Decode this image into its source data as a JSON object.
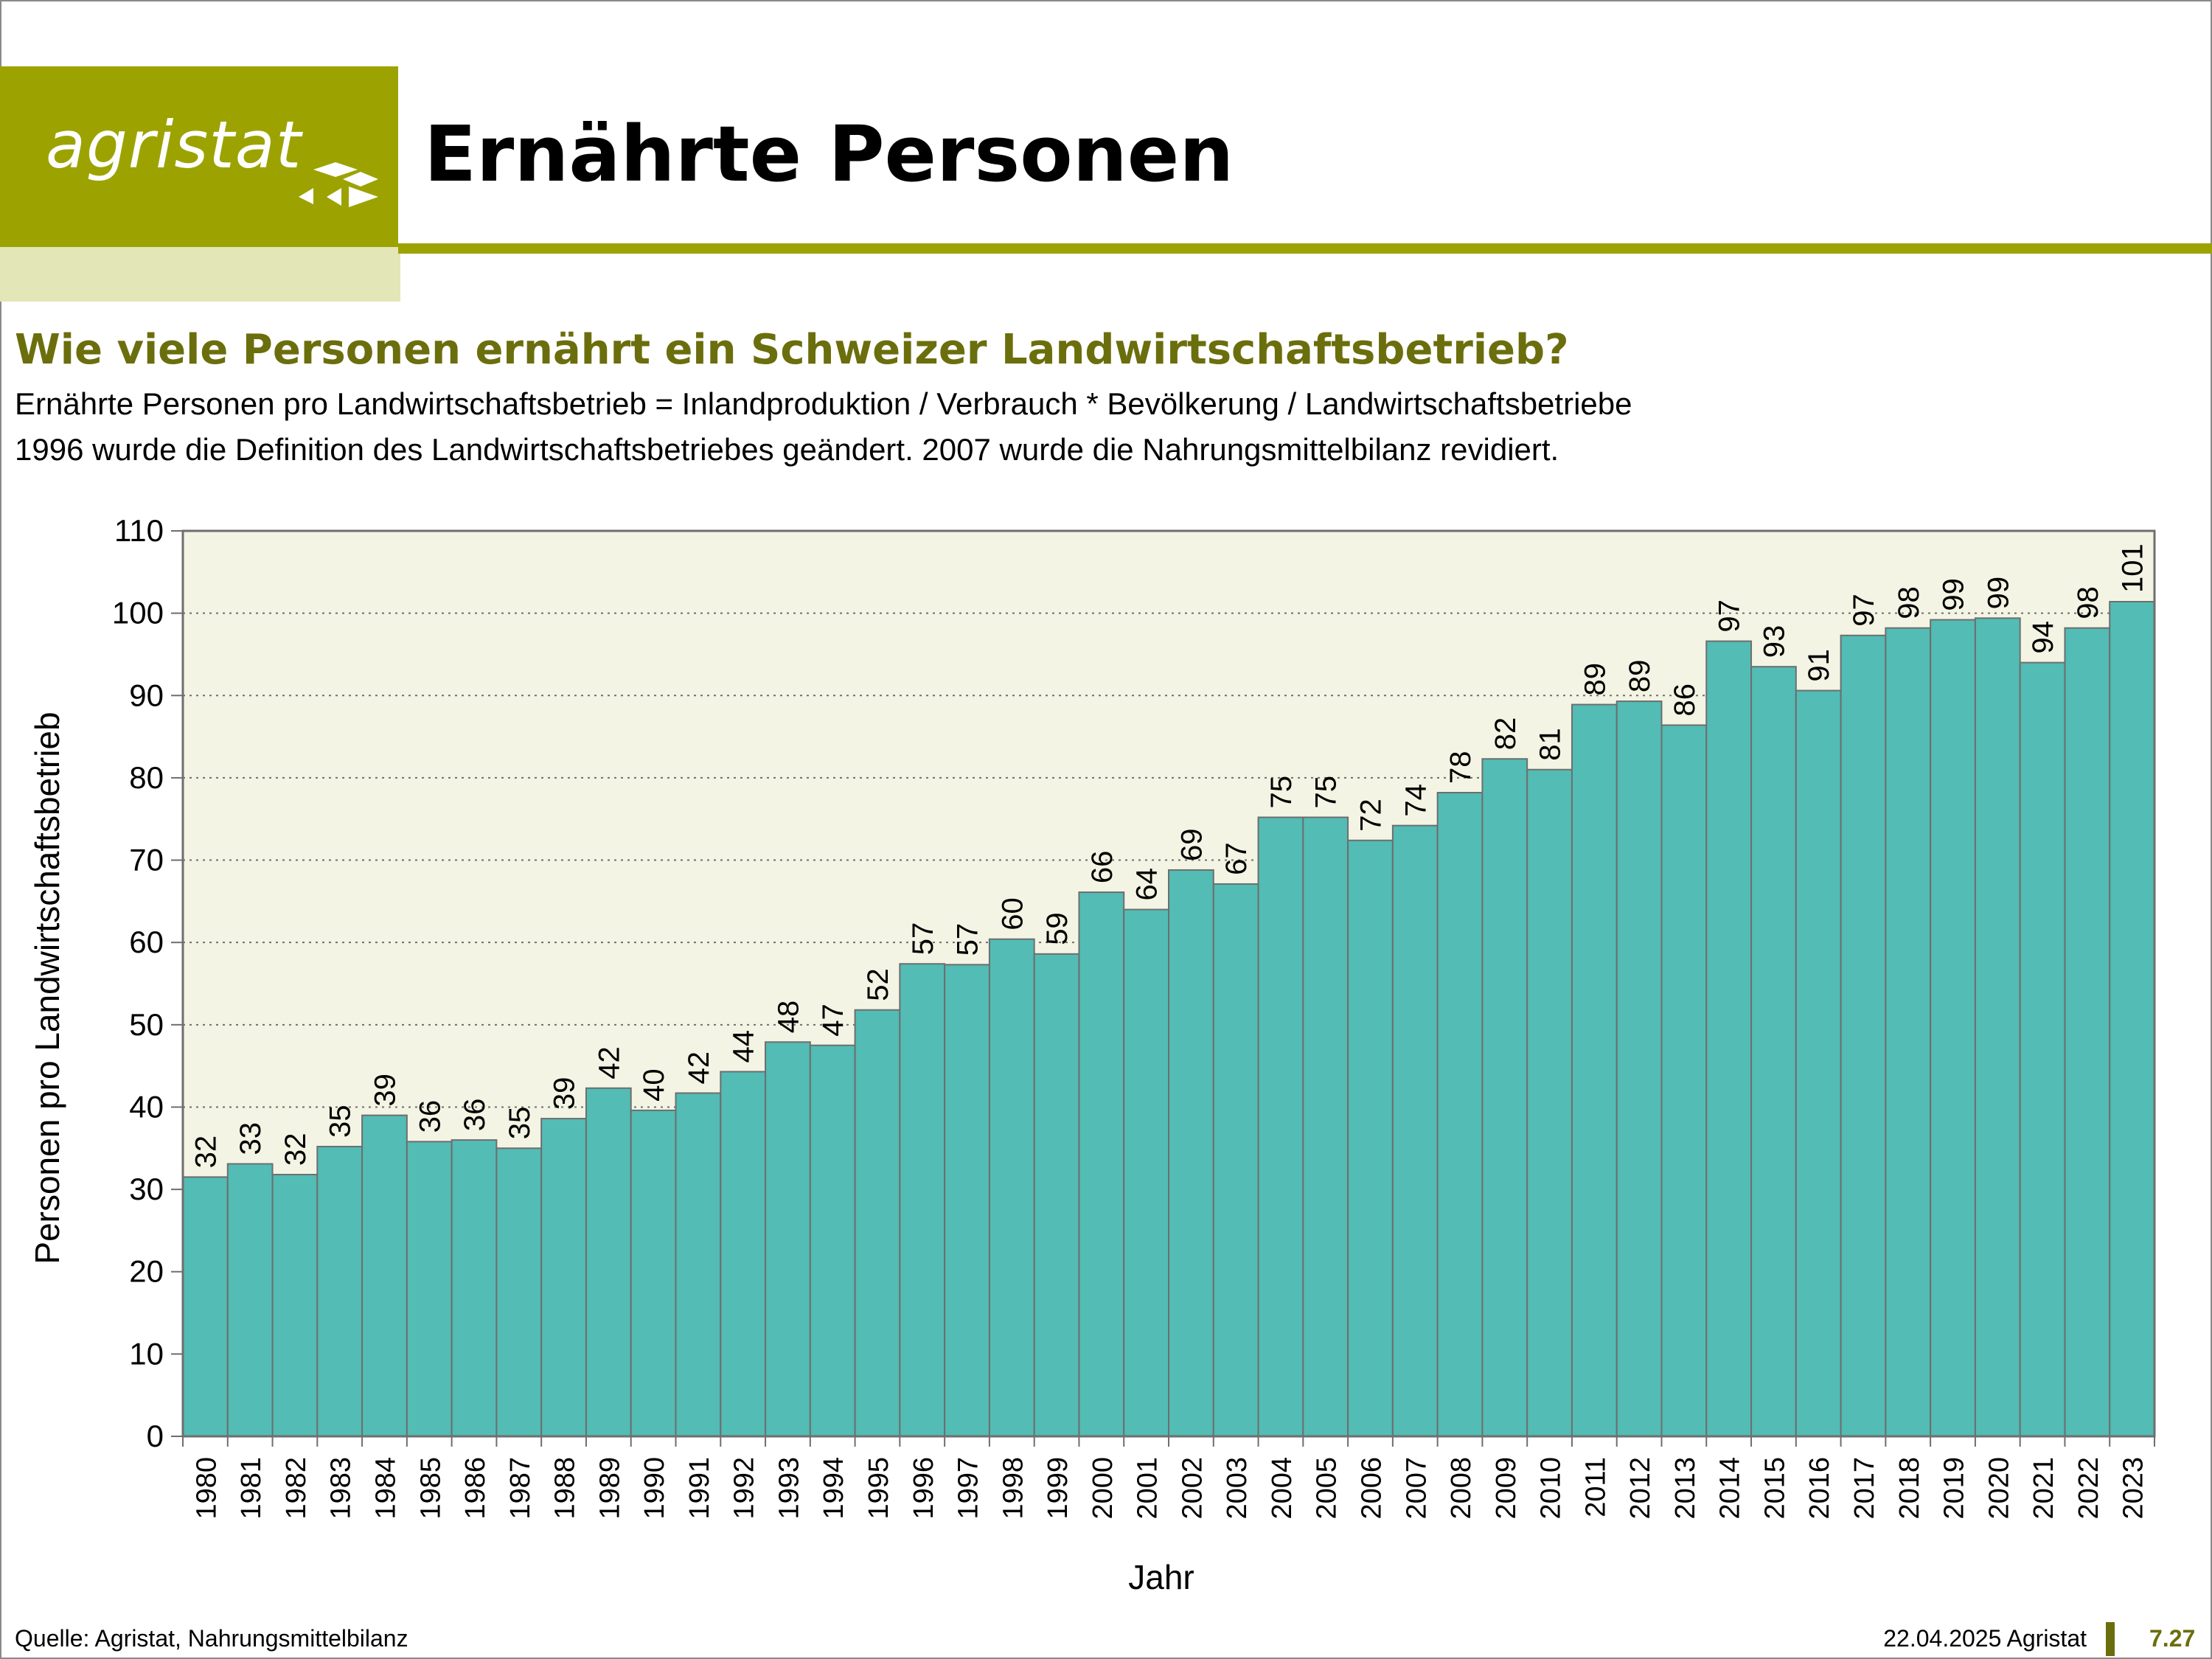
{
  "header": {
    "logo_text": "agristat",
    "title": "Ernährte Personen"
  },
  "intro": {
    "question": "Wie viele Personen ernährt ein Schweizer Landwirtschaftsbetrieb?",
    "formula": "Ernährte Personen pro Landwirtschaftsbetrieb = Inlandproduktion / Verbrauch * Bevölkerung / Landwirtschaftsbetriebe",
    "note": "1996 wurde die Definition des Landwirtschaftsbetriebes geändert. 2007 wurde die Nahrungsmittelbilanz revidiert."
  },
  "chart_data": {
    "type": "bar",
    "xlabel": "Jahr",
    "ylabel": "Personen pro Landwirtschaftsbetrieb",
    "ylim": [
      0,
      110
    ],
    "yticks": [
      0,
      10,
      20,
      30,
      40,
      50,
      60,
      70,
      80,
      90,
      100,
      110
    ],
    "grid": "horizontal dotted",
    "categories": [
      "1980",
      "1981",
      "1982",
      "1983",
      "1984",
      "1985",
      "1986",
      "1987",
      "1988",
      "1989",
      "1990",
      "1991",
      "1992",
      "1993",
      "1994",
      "1995",
      "1996",
      "1997",
      "1998",
      "1999",
      "2000",
      "2001",
      "2002",
      "2003",
      "2004",
      "2005",
      "2006",
      "2007",
      "2008",
      "2009",
      "2010",
      "2011",
      "2012",
      "2013",
      "2014",
      "2015",
      "2016",
      "2017",
      "2018",
      "2019",
      "2020",
      "2021",
      "2022",
      "2023"
    ],
    "values": [
      31.5,
      33.1,
      31.8,
      35.2,
      39.0,
      35.8,
      36.0,
      35.0,
      38.6,
      42.3,
      39.6,
      41.7,
      44.3,
      47.9,
      47.5,
      51.8,
      57.4,
      57.3,
      60.4,
      58.6,
      66.1,
      64.0,
      68.8,
      67.1,
      75.2,
      75.2,
      72.4,
      74.2,
      78.2,
      82.3,
      81.0,
      88.9,
      89.3,
      86.4,
      96.6,
      93.5,
      90.6,
      97.3,
      98.2,
      99.2,
      99.4,
      94.0,
      98.2,
      101.4
    ],
    "data_labels": [
      "32",
      "33",
      "32",
      "35",
      "39",
      "36",
      "36",
      "35",
      "39",
      "42",
      "40",
      "42",
      "44",
      "48",
      "47",
      "52",
      "57",
      "57",
      "60",
      "59",
      "66",
      "64",
      "69",
      "67",
      "75",
      "75",
      "72",
      "74",
      "78",
      "82",
      "81",
      "89",
      "89",
      "86",
      "97",
      "93",
      "91",
      "97",
      "98",
      "99",
      "99",
      "94",
      "98",
      "101"
    ],
    "colors": {
      "bar": "#52bcb5",
      "bar_edge": "#6e6e6e",
      "plot_bg": "#f4f4e4",
      "grid": "#6e6e6e"
    }
  },
  "footer": {
    "source": "Quelle: Agristat, Nahrungsmittelbilanz",
    "date": "22.04.2025 Agristat",
    "page": "7.27"
  }
}
